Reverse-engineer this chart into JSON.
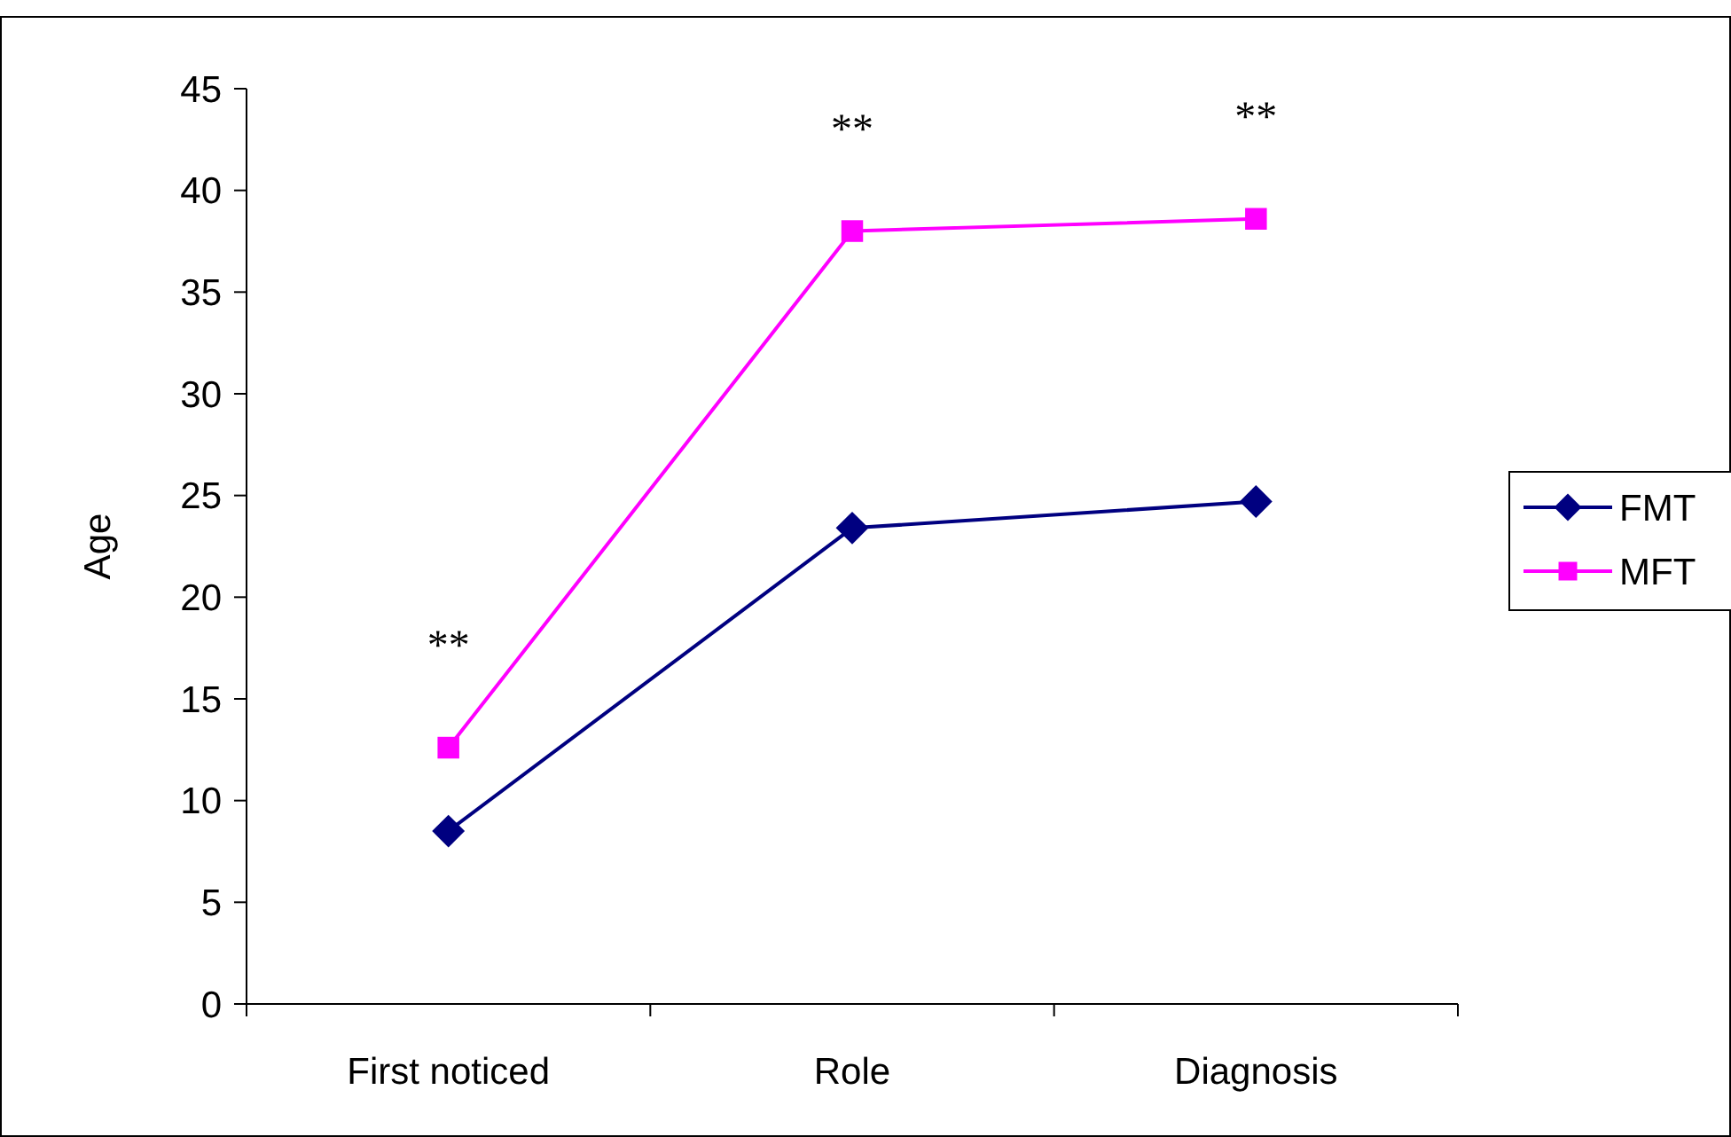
{
  "chart_data": {
    "type": "line",
    "ylabel": "Age",
    "categories": [
      "First noticed",
      "Role",
      "Diagnosis"
    ],
    "series": [
      {
        "name": "FMT",
        "color": "#000080",
        "marker": "diamond",
        "values": [
          8.5,
          23.4,
          24.7
        ]
      },
      {
        "name": "MFT",
        "color": "#ff00ff",
        "marker": "square",
        "values": [
          12.6,
          38.0,
          38.6
        ]
      }
    ],
    "ylim": [
      0,
      45
    ],
    "yticks": [
      0,
      5,
      10,
      15,
      20,
      25,
      30,
      35,
      40,
      45
    ],
    "grid": false,
    "legend": "right",
    "annotations": [
      "**",
      "**",
      "**"
    ]
  }
}
